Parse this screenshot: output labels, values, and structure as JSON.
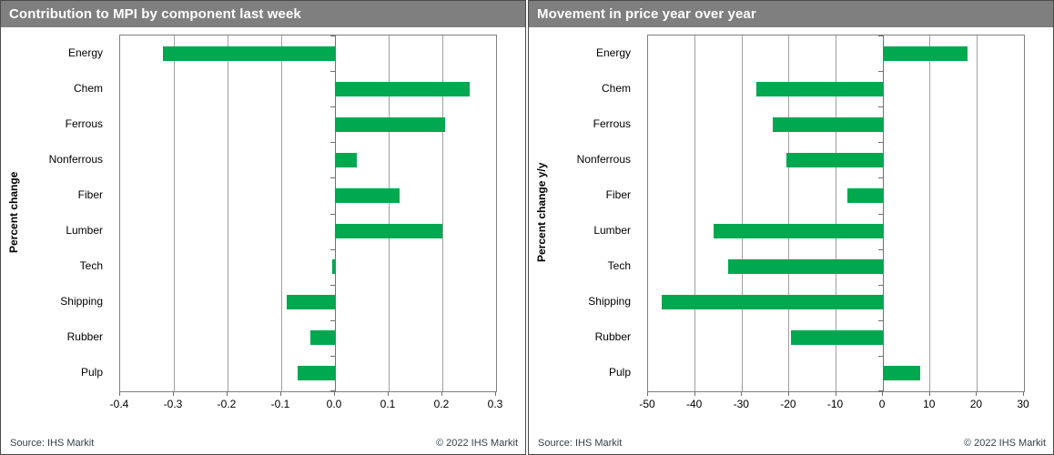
{
  "colors": {
    "bar_green": "#00a84f",
    "title_bar_bg": "#7f7f7f",
    "title_text": "#ffffff",
    "gridline": "#a0a0a0",
    "axis": "#707070",
    "label_text": "#000000",
    "footer_text": "#333f48"
  },
  "footer": {
    "source": "Source: IHS Markit",
    "copyright": "© 2022 IHS Markit"
  },
  "chart_data": [
    {
      "type": "bar",
      "orientation": "horizontal",
      "title": "Contribution to MPI by component last week",
      "ylabel": "Percent change",
      "categories": [
        "Energy",
        "Chem",
        "Ferrous",
        "Nonferrous",
        "Fiber",
        "Lumber",
        "Tech",
        "Shipping",
        "Rubber",
        "Pulp"
      ],
      "values": [
        -0.32,
        0.25,
        0.205,
        0.04,
        0.12,
        0.2,
        -0.005,
        -0.09,
        -0.045,
        -0.07
      ],
      "xlim": [
        -0.4,
        0.3
      ],
      "xtick_step": 0.1,
      "tick_decimals": 1,
      "xtick_labels": [
        "-0.4",
        "-0.3",
        "-0.2",
        "-0.1",
        "0.0",
        "0.1",
        "0.2",
        "0.3"
      ],
      "grid": true,
      "legend": "none",
      "bar_color": "#00a84f"
    },
    {
      "type": "bar",
      "orientation": "horizontal",
      "title": "Movement in price year over year",
      "ylabel": "Percent change y/y",
      "categories": [
        "Energy",
        "Chem",
        "Ferrous",
        "Nonferrous",
        "Fiber",
        "Lumber",
        "Tech",
        "Shipping",
        "Rubber",
        "Pulp"
      ],
      "values": [
        18,
        -27,
        -23.5,
        -20.5,
        -7.5,
        -36,
        -33,
        -47,
        -19.5,
        8
      ],
      "xlim": [
        -50,
        30
      ],
      "xtick_step": 10,
      "tick_decimals": 0,
      "xtick_labels": [
        "-50",
        "-40",
        "-30",
        "-20",
        "-10",
        "0",
        "10",
        "20",
        "30"
      ],
      "grid": true,
      "legend": "none",
      "bar_color": "#00a84f"
    }
  ]
}
